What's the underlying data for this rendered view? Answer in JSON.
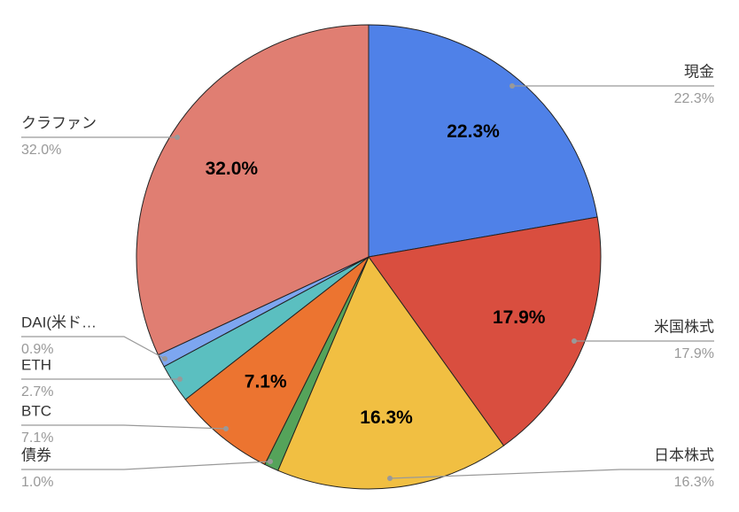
{
  "chart_data": {
    "type": "pie",
    "categories": [
      "現金",
      "米国株式",
      "日本株式",
      "債券",
      "BTC",
      "ETH",
      "DAI(米ド…",
      "クラファン"
    ],
    "values": [
      22.3,
      17.9,
      16.3,
      1.0,
      7.1,
      2.7,
      0.9,
      32.0
    ],
    "value_labels": [
      "22.3%",
      "17.9%",
      "16.3%",
      "1.0%",
      "7.1%",
      "2.7%",
      "0.9%",
      "32.0%"
    ],
    "colors": [
      "#4f81e8",
      "#d94e3f",
      "#f1bf42",
      "#55a35a",
      "#ec7430",
      "#5bbfc0",
      "#7da6f0",
      "#e07e72"
    ]
  }
}
